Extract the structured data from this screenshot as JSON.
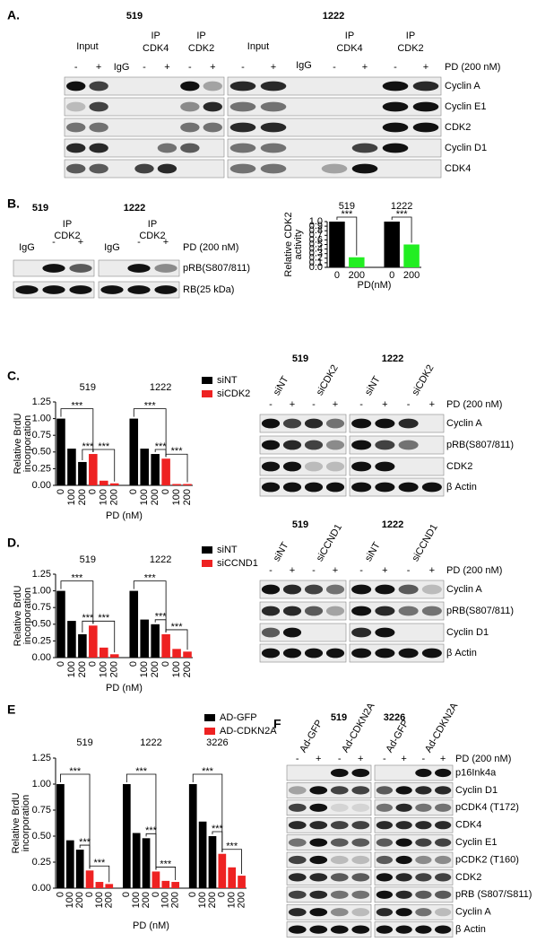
{
  "panels": {
    "a": {
      "label": "A.",
      "groups": [
        {
          "cell_line": "519",
          "headers": [
            [
              "Input"
            ],
            [
              "IgG"
            ],
            [
              "IP",
              "CDK4"
            ],
            [
              "IP",
              "CDK2"
            ]
          ],
          "signs": [
            "-",
            "+",
            null,
            "-",
            "+",
            "-",
            "+"
          ]
        },
        {
          "cell_line": "1222",
          "headers": [
            [
              "Input"
            ],
            [
              "IgG"
            ],
            [
              "IP",
              "CDK4"
            ],
            [
              "IP",
              "CDK2"
            ]
          ],
          "signs": [
            "-",
            "+",
            null,
            "-",
            "+",
            "-",
            "+"
          ]
        }
      ],
      "treatment": "PD (200 nM)",
      "proteins": [
        "Cyclin A",
        "Cyclin E1",
        "CDK2",
        "Cyclin D1",
        "CDK4"
      ]
    },
    "b": {
      "label": "B.",
      "groups": [
        {
          "cell_line": "519",
          "headers": [
            [
              "IgG"
            ],
            [
              "IP",
              "CDK2"
            ]
          ],
          "signs": [
            null,
            "-",
            "+"
          ]
        },
        {
          "cell_line": "1222",
          "headers": [
            [
              "IgG"
            ],
            [
              "IP",
              "CDK2"
            ]
          ],
          "signs": [
            null,
            "-",
            "+"
          ]
        }
      ],
      "treatment": "PD (200 nM)",
      "proteins": [
        "pRB(S807/811)",
        "RB(25 kDa)"
      ]
    },
    "c": {
      "label": "C.",
      "groups": [
        {
          "cell_line": "519",
          "headers": [
            "siNT",
            "siCDK2"
          ],
          "signs": [
            "-",
            "+",
            "-",
            "+"
          ]
        },
        {
          "cell_line": "1222",
          "headers": [
            "siNT",
            "siCDK2"
          ],
          "signs": [
            "-",
            "+",
            "-",
            "+"
          ]
        }
      ],
      "treatment": "PD (200 nM)",
      "proteins": [
        "Cyclin A",
        "pRB(S807/811)",
        "CDK2",
        "β Actin"
      ]
    },
    "d": {
      "label": "D.",
      "groups": [
        {
          "cell_line": "519",
          "headers": [
            "siNT",
            "siCCND1"
          ],
          "signs": [
            "-",
            "+",
            "-",
            "+"
          ]
        },
        {
          "cell_line": "1222",
          "headers": [
            "siNT",
            "siCCND1"
          ],
          "signs": [
            "-",
            "+",
            "-",
            "+"
          ]
        }
      ],
      "treatment": "PD (200 nM)",
      "proteins": [
        "Cyclin A",
        "pRB(S807/811)",
        "Cyclin D1",
        "β Actin"
      ]
    },
    "e": {
      "label": "E"
    },
    "f": {
      "label": "F",
      "groups": [
        {
          "cell_line": "519",
          "headers": [
            "Ad-GFP",
            "Ad-CDKN2A"
          ],
          "signs": [
            "-",
            "+",
            "-",
            "+"
          ]
        },
        {
          "cell_line": "3226",
          "headers": [
            "Ad-GFP",
            "Ad-CDKN2A"
          ],
          "signs": [
            "-",
            "+",
            "-",
            "+"
          ]
        }
      ],
      "treatment": "PD (200 nM)",
      "proteins": [
        "p16Ink4a",
        "Cyclin D1",
        "pCDK4 (T172)",
        "CDK4",
        "Cyclin E1",
        "pCDK2 (T160)",
        "CDK2",
        "pRB (S807/S811)",
        "Cyclin A",
        "β Actin"
      ]
    }
  },
  "chart_data": [
    {
      "type": "bar",
      "group_labels": [
        "519",
        "1222"
      ],
      "categories": [
        "0",
        "200",
        "0",
        "200"
      ],
      "values": [
        1.0,
        0.22,
        1.0,
        0.5
      ],
      "colors": [
        "#000000",
        "#22ee22",
        "#000000",
        "#22ee22"
      ],
      "ylabel": [
        "Relative CDK2",
        "activity"
      ],
      "xlabel": "PD(nM)",
      "ylim": [
        0,
        1.0
      ],
      "yticks": [
        {
          "value": 0,
          "label": "0.0"
        },
        {
          "value": 0.1,
          "label": "0.1"
        },
        {
          "value": 0.2,
          "label": "0.2"
        },
        {
          "value": 0.3,
          "label": "0.3"
        },
        {
          "value": 0.4,
          "label": "0.4"
        },
        {
          "value": 0.5,
          "label": "0.5"
        },
        {
          "value": 0.6,
          "label": "0.6"
        },
        {
          "value": 0.7,
          "label": "0.7"
        },
        {
          "value": 0.8,
          "label": "0.8"
        },
        {
          "value": 0.9,
          "label": "0.9"
        },
        {
          "value": 1.0,
          "label": "1.0"
        }
      ],
      "annotations": [
        "***",
        "***"
      ]
    },
    {
      "type": "bar",
      "group_labels": [
        "519",
        "1222"
      ],
      "categories": [
        "0",
        "100",
        "200",
        "0",
        "100",
        "200",
        "0",
        "100",
        "200",
        "0",
        "100",
        "200"
      ],
      "series": [
        {
          "name": "siNT",
          "color": "#000000",
          "values": [
            1.0,
            0.55,
            0.35,
            null,
            null,
            null,
            1.0,
            0.55,
            0.47,
            null,
            null,
            null
          ]
        },
        {
          "name": "siCDK2",
          "color": "#ee2222",
          "values": [
            null,
            null,
            null,
            0.47,
            0.07,
            0.03,
            null,
            null,
            null,
            0.4,
            0.02,
            0.02
          ]
        }
      ],
      "ylabel": [
        "Relative BrdU",
        "incorporation"
      ],
      "xlabel": "PD (nM)",
      "ylim": [
        0,
        1.25
      ],
      "yticks": [
        {
          "value": 0,
          "label": "0.00"
        },
        {
          "value": 0.25,
          "label": "0.25"
        },
        {
          "value": 0.5,
          "label": "0.50"
        },
        {
          "value": 0.75,
          "label": "0.75"
        },
        {
          "value": 1.0,
          "label": "1.00"
        },
        {
          "value": 1.25,
          "label": "1.25"
        }
      ],
      "annotations": [
        "***",
        "***",
        "***",
        "***",
        "***",
        "***"
      ]
    },
    {
      "type": "bar",
      "group_labels": [
        "519",
        "1222"
      ],
      "categories": [
        "0",
        "100",
        "200",
        "0",
        "100",
        "200",
        "0",
        "100",
        "200",
        "0",
        "100",
        "200"
      ],
      "series": [
        {
          "name": "siNT",
          "color": "#000000",
          "values": [
            1.0,
            0.55,
            0.35,
            null,
            null,
            null,
            1.0,
            0.57,
            0.5,
            null,
            null,
            null
          ]
        },
        {
          "name": "siCCND1",
          "color": "#ee2222",
          "values": [
            null,
            null,
            null,
            0.48,
            0.15,
            0.05,
            null,
            null,
            null,
            0.35,
            0.13,
            0.09
          ]
        }
      ],
      "ylabel": [
        "Relative BrdU",
        "incorporation"
      ],
      "xlabel": "PD (nM)",
      "ylim": [
        0,
        1.25
      ],
      "yticks": [
        {
          "value": 0,
          "label": "0.00"
        },
        {
          "value": 0.25,
          "label": "0.25"
        },
        {
          "value": 0.5,
          "label": "0.50"
        },
        {
          "value": 0.75,
          "label": "0.75"
        },
        {
          "value": 1.0,
          "label": "1.00"
        },
        {
          "value": 1.25,
          "label": "1.25"
        }
      ],
      "annotations": [
        "***",
        "***",
        "***",
        "***",
        "***",
        "***"
      ]
    },
    {
      "type": "bar",
      "group_labels": [
        "519",
        "1222",
        "3226"
      ],
      "categories": [
        "0",
        "100",
        "200",
        "0",
        "100",
        "200",
        "0",
        "100",
        "200",
        "0",
        "100",
        "200",
        "0",
        "100",
        "200",
        "0",
        "100",
        "200"
      ],
      "series": [
        {
          "name": "AD-GFP",
          "color": "#000000",
          "values": [
            1.0,
            0.46,
            0.37,
            null,
            null,
            null,
            1.0,
            0.53,
            0.48,
            null,
            null,
            null,
            1.0,
            0.64,
            0.5,
            null,
            null,
            null
          ]
        },
        {
          "name": "AD-CDKN2A",
          "color": "#ee2222",
          "values": [
            null,
            null,
            null,
            0.17,
            0.06,
            0.04,
            null,
            null,
            null,
            0.16,
            0.07,
            0.06,
            null,
            null,
            null,
            0.33,
            0.2,
            0.12
          ]
        }
      ],
      "ylabel": [
        "Relative BrdU",
        "incorporation"
      ],
      "xlabel": "PD (nM)",
      "ylim": [
        0,
        1.25
      ],
      "yticks": [
        {
          "value": 0,
          "label": "0.00"
        },
        {
          "value": 0.25,
          "label": "0.25"
        },
        {
          "value": 0.5,
          "label": "0.50"
        },
        {
          "value": 0.75,
          "label": "0.75"
        },
        {
          "value": 1.0,
          "label": "1.00"
        },
        {
          "value": 1.25,
          "label": "1.25"
        }
      ],
      "annotations": [
        "***",
        "***",
        "***",
        "***",
        "***",
        "***",
        "***",
        "***",
        "***"
      ]
    }
  ]
}
